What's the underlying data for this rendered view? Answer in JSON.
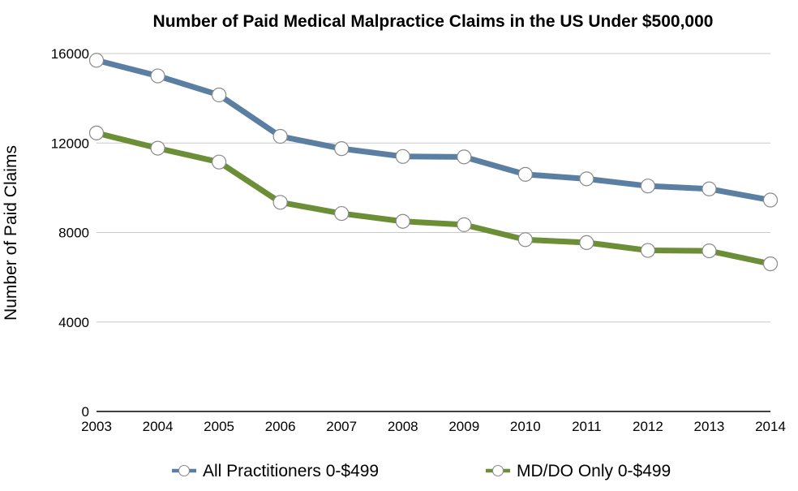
{
  "chart_data": {
    "type": "line",
    "title": "Number of Paid Medical Malpractice Claims in the US Under $500,000",
    "xlabel": "",
    "ylabel": "Number of Paid Claims",
    "x": [
      "2003",
      "2004",
      "2005",
      "2006",
      "2007",
      "2008",
      "2009",
      "2010",
      "2011",
      "2012",
      "2013",
      "2014"
    ],
    "ylim": [
      0,
      16000
    ],
    "yticks": [
      "0",
      "4000",
      "8000",
      "12000",
      "16000"
    ],
    "grid": true,
    "legend_position": "bottom",
    "series": [
      {
        "name": "All Practitioners 0-$499",
        "color": "#5b7fa3",
        "values": [
          15700,
          15000,
          14150,
          12300,
          11750,
          11400,
          11380,
          10600,
          10400,
          10080,
          9950,
          9450
        ]
      },
      {
        "name": "MD/DO Only 0-$499",
        "color": "#6b8e36",
        "values": [
          12450,
          11770,
          11150,
          9350,
          8850,
          8500,
          8350,
          7680,
          7550,
          7200,
          7180,
          6600
        ]
      }
    ]
  }
}
